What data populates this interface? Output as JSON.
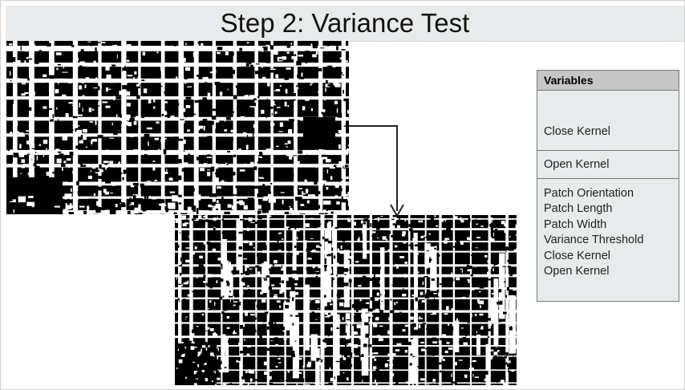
{
  "title": "Step 2: Variance Test",
  "images": {
    "top_description": "binary segmented urban image",
    "bottom_description": "binary segmented urban image after variance test"
  },
  "variables": {
    "header": "Variables",
    "section1": [
      "Close Kernel"
    ],
    "section2": [
      "Open Kernel"
    ],
    "section3": [
      "Patch Orientation",
      "Patch Length",
      "Patch Width",
      "Variance Threshold",
      "Close Kernel",
      "Open Kernel"
    ]
  },
  "colors": {
    "title_bg": "#e8ebec",
    "panel_bg": "#e8ebec",
    "panel_header_bg": "#c6c6c6",
    "arrow": "#222222"
  }
}
